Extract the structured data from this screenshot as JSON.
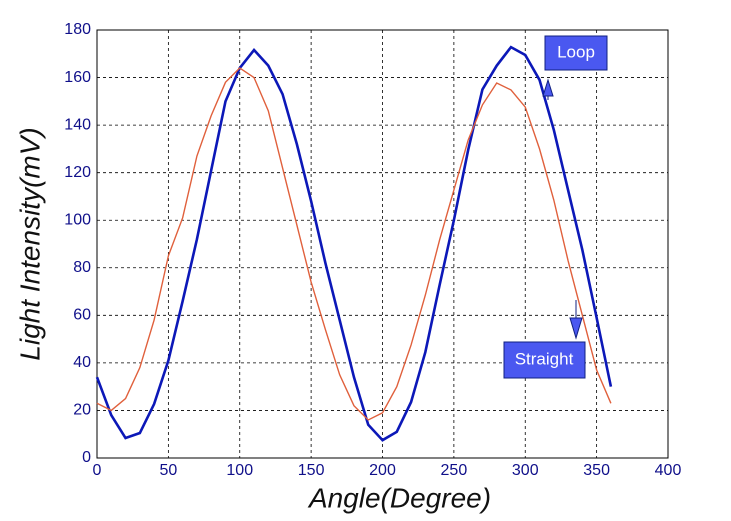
{
  "chart_data": {
    "type": "line",
    "x_label": "Angle(Degree)",
    "y_label": "Light Intensity(mV)",
    "x": [
      0,
      10,
      20,
      30,
      40,
      50,
      60,
      70,
      80,
      90,
      100,
      110,
      120,
      130,
      140,
      150,
      160,
      170,
      180,
      190,
      200,
      210,
      220,
      230,
      240,
      250,
      260,
      270,
      280,
      290,
      300,
      310,
      320,
      330,
      340,
      350,
      360
    ],
    "series": [
      {
        "name": "Loop",
        "color": "#0c18b8",
        "values": [
          34,
          18,
          8.4,
          10.5,
          22.7,
          41,
          66,
          92,
          121,
          150,
          164,
          171.6,
          165,
          153,
          132,
          108,
          82,
          58,
          34,
          14,
          7.5,
          11,
          23.5,
          44.5,
          72.7,
          100,
          129.5,
          155,
          165,
          172.8,
          169.5,
          159,
          138,
          112.7,
          87.5,
          59,
          30
        ]
      },
      {
        "name": "Straight",
        "color": "#e0603c",
        "values": [
          23,
          20,
          25,
          38,
          58,
          85,
          101,
          127,
          144,
          158,
          164,
          160,
          146,
          122,
          98,
          74,
          54,
          35,
          22,
          16,
          19,
          30,
          47.5,
          68.5,
          91.7,
          112.7,
          133.7,
          148.5,
          157.7,
          154.8,
          147.6,
          130,
          108.5,
          83,
          60,
          37,
          23
        ]
      }
    ],
    "xlim": [
      0,
      400
    ],
    "xticks": [
      0,
      50,
      100,
      150,
      200,
      250,
      300,
      350,
      400
    ],
    "ylim": [
      0,
      180
    ],
    "yticks": [
      0,
      20,
      40,
      60,
      80,
      100,
      120,
      140,
      160,
      180
    ],
    "grid": true
  }
}
